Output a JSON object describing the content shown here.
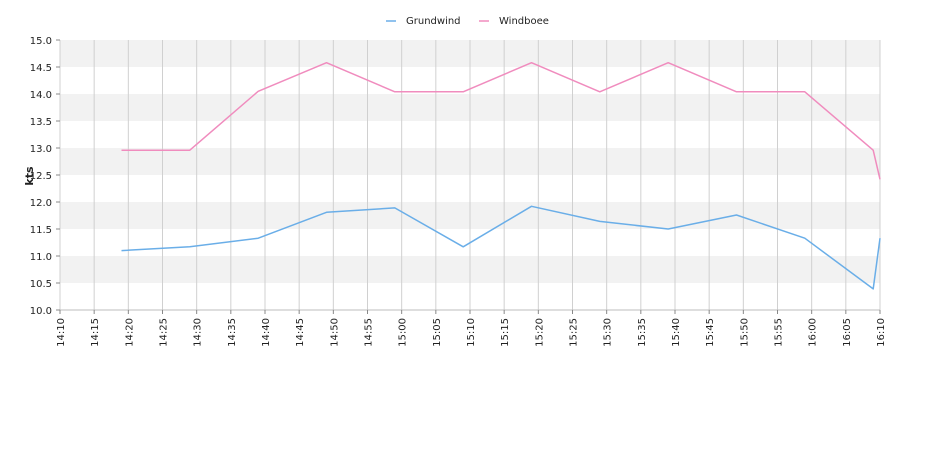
{
  "chart_data": {
    "type": "line",
    "title": "",
    "xlabel": "",
    "ylabel": "kts",
    "xlim": [
      "14:10",
      "16:10"
    ],
    "ylim": [
      10.0,
      15.0
    ],
    "x_ticks": [
      "14:10",
      "14:15",
      "14:20",
      "14:25",
      "14:30",
      "14:35",
      "14:40",
      "14:45",
      "14:50",
      "14:55",
      "15:00",
      "15:05",
      "15:10",
      "15:15",
      "15:20",
      "15:25",
      "15:30",
      "15:35",
      "15:40",
      "15:45",
      "15:50",
      "15:55",
      "16:00",
      "16:05",
      "16:10"
    ],
    "y_ticks": [
      "10.0",
      "10.5",
      "11.0",
      "11.5",
      "12.0",
      "12.5",
      "13.0",
      "13.5",
      "14.0",
      "14.5",
      "15.0"
    ],
    "grid": true,
    "legend_position": "top-center",
    "series": [
      {
        "name": "Grundwind",
        "color": "#6aaee8",
        "x": [
          "14:19",
          "14:29",
          "14:39",
          "14:49",
          "14:59",
          "15:09",
          "15:19",
          "15:29",
          "15:39",
          "15:49",
          "15:59",
          "16:09",
          "16:10"
        ],
        "values": [
          11.1,
          11.17,
          11.33,
          11.81,
          11.89,
          11.17,
          11.92,
          11.64,
          11.5,
          11.76,
          11.33,
          10.39,
          11.33
        ]
      },
      {
        "name": "Windboee",
        "color": "#f08cbe",
        "x": [
          "14:19",
          "14:29",
          "14:39",
          "14:49",
          "14:59",
          "15:09",
          "15:19",
          "15:29",
          "15:39",
          "15:49",
          "15:59",
          "16:09",
          "16:10"
        ],
        "values": [
          12.96,
          12.96,
          14.05,
          14.58,
          14.04,
          14.04,
          14.58,
          14.04,
          14.58,
          14.04,
          14.04,
          12.96,
          12.42
        ]
      }
    ]
  }
}
